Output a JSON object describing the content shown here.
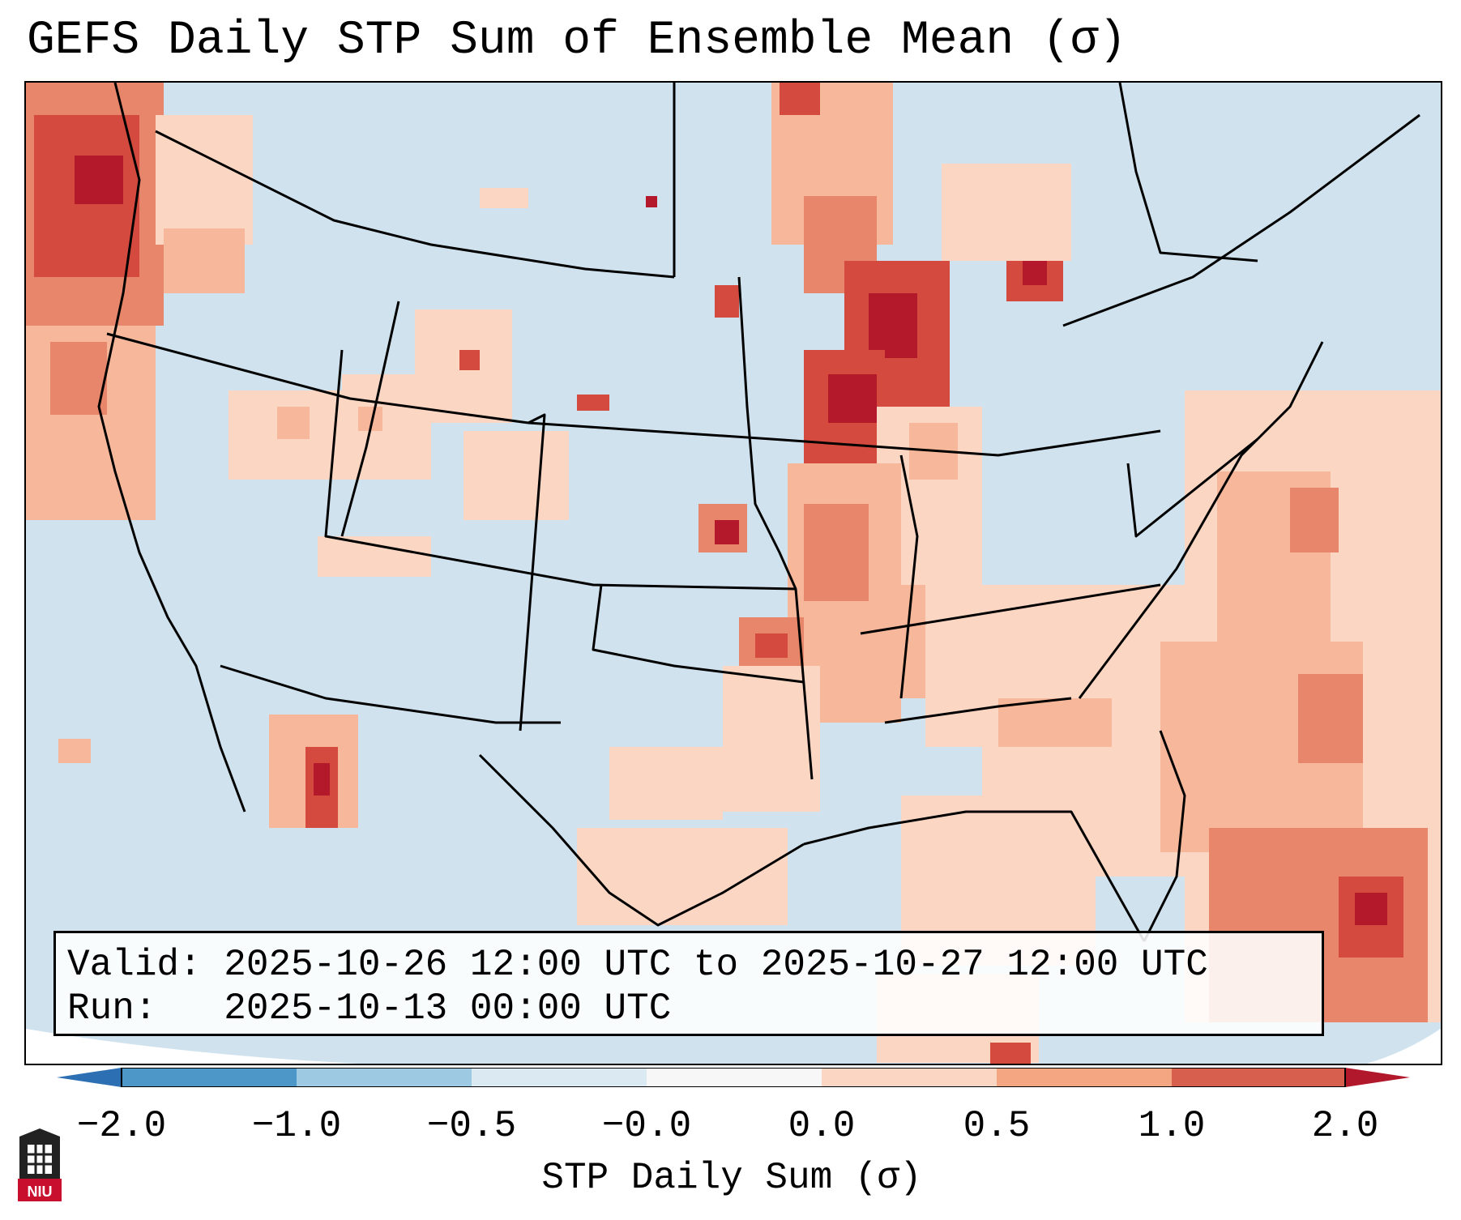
{
  "title": "GEFS Daily STP Sum of Ensemble Mean (σ)",
  "valid_line": "Valid: 2025-10-26 12:00 UTC to 2025-10-27 12:00 UTC",
  "run_line": "Run:   2025-10-13 00:00 UTC",
  "colorbar": {
    "label": "STP Daily Sum (σ)",
    "ticks": [
      "−2.0",
      "−1.0",
      "−0.5",
      "−0.0",
      "0.0",
      "0.5",
      "1.0",
      "2.0"
    ],
    "colors": [
      "#2c6fb2",
      "#4d97c8",
      "#9ec9e2",
      "#dbe9f2",
      "#fbd6c3",
      "#f4a582",
      "#d6604d",
      "#b2182b"
    ],
    "extend": "both"
  },
  "map": {
    "land_color": "#cfe2ee",
    "outside_color": "#ffffff",
    "anomaly_levels": {
      "pale": "#fbd6c3",
      "light": "#f6b79b",
      "medium": "#e7866a",
      "strong": "#d44a3e",
      "max": "#b3182b"
    },
    "regions": [
      {
        "name": "pacific-northwest",
        "level": "medium"
      },
      {
        "name": "upper-midwest-wisconsin",
        "level": "strong"
      },
      {
        "name": "southern-plains-arkansas",
        "level": "medium"
      },
      {
        "name": "western-atlantic",
        "level": "light"
      },
      {
        "name": "bahamas",
        "level": "strong"
      },
      {
        "name": "gulf-of-california",
        "level": "strong"
      }
    ]
  },
  "logo": {
    "text": "NIU"
  }
}
